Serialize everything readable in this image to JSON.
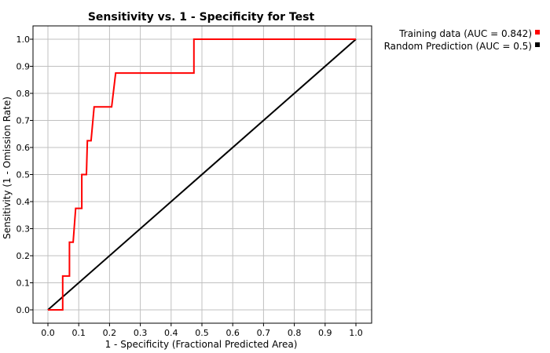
{
  "chart_data": {
    "type": "line",
    "title": "Sensitivity vs. 1 - Specificity for Test",
    "xlabel": "1 - Specificity  (Fractional Predicted Area)",
    "ylabel": "Sensitivity  (1 - Omission Rate)",
    "xlim": [
      0,
      1
    ],
    "ylim": [
      0,
      1
    ],
    "grid": true,
    "legend_position": "top-right, outside plot",
    "x_ticks": [
      "0.0",
      "0.1",
      "0.2",
      "0.3",
      "0.4",
      "0.5",
      "0.6",
      "0.7",
      "0.8",
      "0.9",
      "1.0"
    ],
    "y_ticks": [
      "0.0",
      "0.1",
      "0.2",
      "0.3",
      "0.4",
      "0.5",
      "0.6",
      "0.7",
      "0.8",
      "0.9",
      "1.0"
    ],
    "series": [
      {
        "name": "Training data (AUC = 0.842)",
        "color": "#ff0000",
        "points": [
          [
            0.0,
            0.0
          ],
          [
            0.048,
            0.0
          ],
          [
            0.048,
            0.125
          ],
          [
            0.07,
            0.125
          ],
          [
            0.07,
            0.25
          ],
          [
            0.082,
            0.25
          ],
          [
            0.09,
            0.375
          ],
          [
            0.11,
            0.375
          ],
          [
            0.11,
            0.5
          ],
          [
            0.125,
            0.5
          ],
          [
            0.128,
            0.625
          ],
          [
            0.14,
            0.625
          ],
          [
            0.15,
            0.75
          ],
          [
            0.207,
            0.75
          ],
          [
            0.22,
            0.875
          ],
          [
            0.474,
            0.875
          ],
          [
            0.474,
            1.0
          ],
          [
            1.0,
            1.0
          ]
        ]
      },
      {
        "name": "Random Prediction (AUC = 0.5)",
        "color": "#000000",
        "points": [
          [
            0.0,
            0.0
          ],
          [
            1.0,
            1.0
          ]
        ]
      }
    ]
  }
}
